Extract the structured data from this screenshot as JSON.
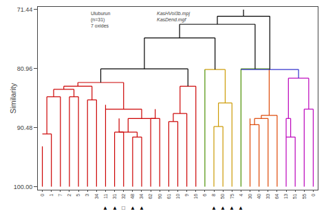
{
  "chart_data": {
    "type": "dendrogram",
    "ylabel": "Similarity",
    "ylim": [
      100.5,
      71.0
    ],
    "yticks": [
      71.44,
      80.96,
      90.48,
      {
        "value": 100.0,
        "label": "100.00"
      }
    ],
    "xlim": [
      -0.5,
      30.5
    ],
    "grid": false,
    "categories": [
      "0",
      "1",
      "7",
      "2",
      "5",
      "3",
      "34",
      "11",
      "31",
      "32",
      "48",
      "34",
      "62",
      "90",
      "61",
      "10",
      "9",
      "16",
      "6",
      "8",
      "50",
      "75",
      "4",
      "30",
      "40",
      "33",
      "64",
      "13",
      "51",
      "55",
      "0"
    ],
    "leaf_marks": [
      {
        "x": 7,
        "text": "▲"
      },
      {
        "x": 8,
        "text": "▲"
      },
      {
        "x": 10,
        "text": "▲"
      },
      {
        "x": 11,
        "text": "▲"
      },
      {
        "x": 19,
        "text": "▲"
      },
      {
        "x": 20,
        "text": "▲"
      },
      {
        "x": 21,
        "text": "▲"
      },
      {
        "x": 22,
        "text": "▲"
      },
      {
        "x": 9,
        "text": "□"
      }
    ],
    "annotations": [
      {
        "text": "Uluburun\n(n=31)\n7 oxides"
      },
      {
        "text": "KasHVol3b.mpj\nKasDend.mgf"
      }
    ],
    "segments": [
      {
        "x": [
          0,
          0
        ],
        "y": [
          100,
          93.5
        ],
        "color": "#cc0000"
      },
      {
        "x": [
          1,
          1
        ],
        "y": [
          100,
          91.5
        ],
        "color": "#cc0000"
      },
      {
        "x": [
          0,
          1
        ],
        "y": [
          91.5,
          91.5
        ],
        "color": "#cc0000"
      },
      {
        "x": [
          0.5,
          0.5
        ],
        "y": [
          91.5,
          85.5
        ],
        "color": "#cc0000"
      },
      {
        "x": [
          2,
          2
        ],
        "y": [
          100,
          85.5
        ],
        "color": "#cc0000"
      },
      {
        "x": [
          0.5,
          2
        ],
        "y": [
          85.5,
          85.5
        ],
        "color": "#cc0000"
      },
      {
        "x": [
          1.25,
          1.25
        ],
        "y": [
          85.5,
          84.3
        ],
        "color": "#cc0000"
      },
      {
        "x": [
          3,
          3
        ],
        "y": [
          100,
          85.5
        ],
        "color": "#cc0000"
      },
      {
        "x": [
          4,
          4
        ],
        "y": [
          100,
          85.5
        ],
        "color": "#cc0000"
      },
      {
        "x": [
          3,
          4
        ],
        "y": [
          85.5,
          85.5
        ],
        "color": "#cc0000"
      },
      {
        "x": [
          3.5,
          3.5
        ],
        "y": [
          85.5,
          84.3
        ],
        "color": "#cc0000"
      },
      {
        "x": [
          1.25,
          3.5
        ],
        "y": [
          84.3,
          84.3
        ],
        "color": "#cc0000"
      },
      {
        "x": [
          2.375,
          2.375
        ],
        "y": [
          84.3,
          83.8
        ],
        "color": "#cc0000"
      },
      {
        "x": [
          5,
          5
        ],
        "y": [
          100,
          86.0
        ],
        "color": "#cc0000"
      },
      {
        "x": [
          6,
          6
        ],
        "y": [
          100,
          86.0
        ],
        "color": "#cc0000"
      },
      {
        "x": [
          5,
          6
        ],
        "y": [
          86.0,
          86.0
        ],
        "color": "#cc0000"
      },
      {
        "x": [
          5.5,
          5.5
        ],
        "y": [
          86.0,
          83.8
        ],
        "color": "#cc0000"
      },
      {
        "x": [
          2.375,
          5.5
        ],
        "y": [
          83.8,
          83.8
        ],
        "color": "#cc0000"
      },
      {
        "x": [
          3.9375,
          3.9375
        ],
        "y": [
          83.8,
          83.2
        ],
        "color": "#cc0000"
      },
      {
        "x": [
          7,
          7
        ],
        "y": [
          100,
          86.8
        ],
        "color": "#cc0000"
      },
      {
        "x": [
          8,
          8
        ],
        "y": [
          100,
          91.2
        ],
        "color": "#cc0000"
      },
      {
        "x": [
          9,
          9
        ],
        "y": [
          100,
          91.2
        ],
        "color": "#cc0000"
      },
      {
        "x": [
          8,
          9
        ],
        "y": [
          91.2,
          91.2
        ],
        "color": "#cc0000"
      },
      {
        "x": [
          8.5,
          8.5
        ],
        "y": [
          91.2,
          89.0
        ],
        "color": "#cc0000"
      },
      {
        "x": [
          10,
          10
        ],
        "y": [
          100,
          92.0
        ],
        "color": "#cc0000"
      },
      {
        "x": [
          11,
          11
        ],
        "y": [
          100,
          92.0
        ],
        "color": "#cc0000"
      },
      {
        "x": [
          10,
          11
        ],
        "y": [
          92.0,
          92.0
        ],
        "color": "#cc0000"
      },
      {
        "x": [
          10.5,
          10.5
        ],
        "y": [
          92.0,
          91.2
        ],
        "color": "#cc0000"
      },
      {
        "x": [
          8.5,
          10.5
        ],
        "y": [
          91.2,
          91.2
        ],
        "color": "#cc0000"
      },
      {
        "x": [
          9.5,
          9.5
        ],
        "y": [
          91.2,
          89.0
        ],
        "color": "#cc0000"
      },
      {
        "x": [
          12,
          12
        ],
        "y": [
          100,
          89.0
        ],
        "color": "#cc0000"
      },
      {
        "x": [
          13,
          13
        ],
        "y": [
          100,
          89.0
        ],
        "color": "#cc0000"
      },
      {
        "x": [
          12,
          13
        ],
        "y": [
          89.0,
          89.0
        ],
        "color": "#cc0000"
      },
      {
        "x": [
          12.5,
          12.5
        ],
        "y": [
          89.0,
          87.5
        ],
        "color": "#cc0000"
      },
      {
        "x": [
          9.5,
          12.5
        ],
        "y": [
          89.0,
          89.0
        ],
        "color": "#cc0000"
      },
      {
        "x": [
          11.0,
          11.0
        ],
        "y": [
          89.0,
          87.5
        ],
        "color": "#cc0000"
      },
      {
        "x": [
          7,
          11.0
        ],
        "y": [
          87.5,
          87.5
        ],
        "color": "#cc0000"
      },
      {
        "x": [
          9.0,
          9.0
        ],
        "y": [
          87.5,
          83.2
        ],
        "color": "#cc0000"
      },
      {
        "x": [
          3.9375,
          9.0
        ],
        "y": [
          83.2,
          83.2
        ],
        "color": "#cc0000"
      },
      {
        "x": [
          6.47,
          6.47
        ],
        "y": [
          83.2,
          81.0
        ],
        "color": "#000000"
      },
      {
        "x": [
          14,
          14
        ],
        "y": [
          100,
          89.5
        ],
        "color": "#cc0000"
      },
      {
        "x": [
          15,
          15
        ],
        "y": [
          100,
          89.5
        ],
        "color": "#cc0000"
      },
      {
        "x": [
          14,
          15
        ],
        "y": [
          89.5,
          89.5
        ],
        "color": "#cc0000"
      },
      {
        "x": [
          14.5,
          14.5
        ],
        "y": [
          89.5,
          88.2
        ],
        "color": "#cc0000"
      },
      {
        "x": [
          16,
          16
        ],
        "y": [
          100,
          88.2
        ],
        "color": "#cc0000"
      },
      {
        "x": [
          14.5,
          16
        ],
        "y": [
          88.2,
          88.2
        ],
        "color": "#cc0000"
      },
      {
        "x": [
          15.25,
          15.25
        ],
        "y": [
          88.2,
          83.8
        ],
        "color": "#cc0000"
      },
      {
        "x": [
          17,
          17
        ],
        "y": [
          100,
          83.8
        ],
        "color": "#cc0000"
      },
      {
        "x": [
          15.25,
          17
        ],
        "y": [
          83.8,
          83.8
        ],
        "color": "#cc0000"
      },
      {
        "x": [
          16.125,
          16.125
        ],
        "y": [
          83.8,
          81.0
        ],
        "color": "#000000"
      },
      {
        "x": [
          6.47,
          16.125
        ],
        "y": [
          81.0,
          81.0
        ],
        "color": "#000000"
      },
      {
        "x": [
          11.3,
          11.3
        ],
        "y": [
          81.0,
          76.0
        ],
        "color": "#000000"
      },
      {
        "x": [
          18,
          18
        ],
        "y": [
          100,
          81.1
        ],
        "color": "#4a9000"
      },
      {
        "x": [
          19,
          19
        ],
        "y": [
          100,
          90.3
        ],
        "color": "#cc9900"
      },
      {
        "x": [
          20,
          20
        ],
        "y": [
          100,
          90.3
        ],
        "color": "#cc9900"
      },
      {
        "x": [
          19,
          20
        ],
        "y": [
          90.3,
          90.3
        ],
        "color": "#cc9900"
      },
      {
        "x": [
          19.5,
          19.5
        ],
        "y": [
          90.3,
          86.5
        ],
        "color": "#cc9900"
      },
      {
        "x": [
          21,
          21
        ],
        "y": [
          100,
          86.5
        ],
        "color": "#cc9900"
      },
      {
        "x": [
          19.5,
          21
        ],
        "y": [
          86.5,
          86.5
        ],
        "color": "#cc9900"
      },
      {
        "x": [
          20.25,
          20.25
        ],
        "y": [
          86.5,
          81.1
        ],
        "color": "#cc9900"
      },
      {
        "x": [
          18,
          20.25
        ],
        "y": [
          81.1,
          81.1
        ],
        "color": "#cc9900"
      },
      {
        "x": [
          19.125,
          19.125
        ],
        "y": [
          81.1,
          76.0
        ],
        "color": "#000000"
      },
      {
        "x": [
          11.3,
          19.125
        ],
        "y": [
          76.0,
          76.0
        ],
        "color": "#000000"
      },
      {
        "x": [
          15.2,
          15.2
        ],
        "y": [
          76.0,
          73.8
        ],
        "color": "#000000"
      },
      {
        "x": [
          22,
          22
        ],
        "y": [
          100,
          81.0
        ],
        "color": "#4a9000"
      },
      {
        "x": [
          23,
          23
        ],
        "y": [
          100,
          89.0
        ],
        "color": "#dd4400"
      },
      {
        "x": [
          24,
          24
        ],
        "y": [
          100,
          90.0
        ],
        "color": "#dd4400"
      },
      {
        "x": [
          23,
          24
        ],
        "y": [
          90.0,
          90.0
        ],
        "color": "#dd4400"
      },
      {
        "x": [
          23.5,
          23.5
        ],
        "y": [
          90.0,
          89.0
        ],
        "color": "#dd4400"
      },
      {
        "x": [
          25,
          25
        ],
        "y": [
          100,
          89.0
        ],
        "color": "#dd4400"
      },
      {
        "x": [
          23.5,
          25
        ],
        "y": [
          89.0,
          89.0
        ],
        "color": "#dd4400"
      },
      {
        "x": [
          24.25,
          24.25
        ],
        "y": [
          89.0,
          88.5
        ],
        "color": "#dd4400"
      },
      {
        "x": [
          26,
          26
        ],
        "y": [
          100,
          88.5
        ],
        "color": "#dd4400"
      },
      {
        "x": [
          24.25,
          26
        ],
        "y": [
          88.5,
          88.5
        ],
        "color": "#dd4400"
      },
      {
        "x": [
          25.125,
          25.125
        ],
        "y": [
          88.5,
          81.0
        ],
        "color": "#dd4400"
      },
      {
        "x": [
          22,
          25.125
        ],
        "y": [
          81.0,
          81.0
        ],
        "color": "#4a9000"
      },
      {
        "x": [
          23.5625,
          23.5625
        ],
        "y": [
          81.0,
          73.8
        ],
        "color": "#000000"
      },
      {
        "x": [
          15.2,
          23.5625
        ],
        "y": [
          73.8,
          73.8
        ],
        "color": "#000000"
      },
      {
        "x": [
          19.38,
          19.38
        ],
        "y": [
          73.8,
          72.5
        ],
        "color": "#000000"
      },
      {
        "x": [
          27,
          27
        ],
        "y": [
          100,
          89.0
        ],
        "color": "#bb00bb"
      },
      {
        "x": [
          28,
          28
        ],
        "y": [
          100,
          92.0
        ],
        "color": "#bb00bb"
      },
      {
        "x": [
          27,
          28
        ],
        "y": [
          92.0,
          92.0
        ],
        "color": "#bb00bb"
      },
      {
        "x": [
          27.5,
          27.5
        ],
        "y": [
          92.0,
          89.0
        ],
        "color": "#bb00bb"
      },
      {
        "x": [
          27,
          27.5
        ],
        "y": [
          89.0,
          89.0
        ],
        "color": "#bb00bb"
      },
      {
        "x": [
          27.25,
          27.25
        ],
        "y": [
          89.0,
          82.5
        ],
        "color": "#bb00bb"
      },
      {
        "x": [
          29,
          29
        ],
        "y": [
          100,
          87.5
        ],
        "color": "#bb00bb"
      },
      {
        "x": [
          30,
          30
        ],
        "y": [
          100,
          87.5
        ],
        "color": "#bb00bb"
      },
      {
        "x": [
          29,
          30
        ],
        "y": [
          87.5,
          87.5
        ],
        "color": "#bb00bb"
      },
      {
        "x": [
          29.5,
          29.5
        ],
        "y": [
          87.5,
          82.5
        ],
        "color": "#bb00bb"
      },
      {
        "x": [
          27.25,
          29.5
        ],
        "y": [
          82.5,
          82.5
        ],
        "color": "#bb00bb"
      },
      {
        "x": [
          28.375,
          28.375
        ],
        "y": [
          82.5,
          81.1
        ],
        "color": "#3333cc"
      },
      {
        "x": [
          22,
          28.375
        ],
        "y": [
          81.1,
          81.1
        ],
        "color": "#3333cc"
      },
      {
        "x": [
          25.19,
          25.19
        ],
        "y": [
          81.1,
          72.5
        ],
        "color": "#000000"
      },
      {
        "x": [
          19.38,
          25.19
        ],
        "y": [
          72.5,
          72.5
        ],
        "color": "#000000"
      },
      {
        "x": [
          22.28,
          22.28
        ],
        "y": [
          72.5,
          71.44
        ],
        "color": "#000000"
      }
    ]
  }
}
